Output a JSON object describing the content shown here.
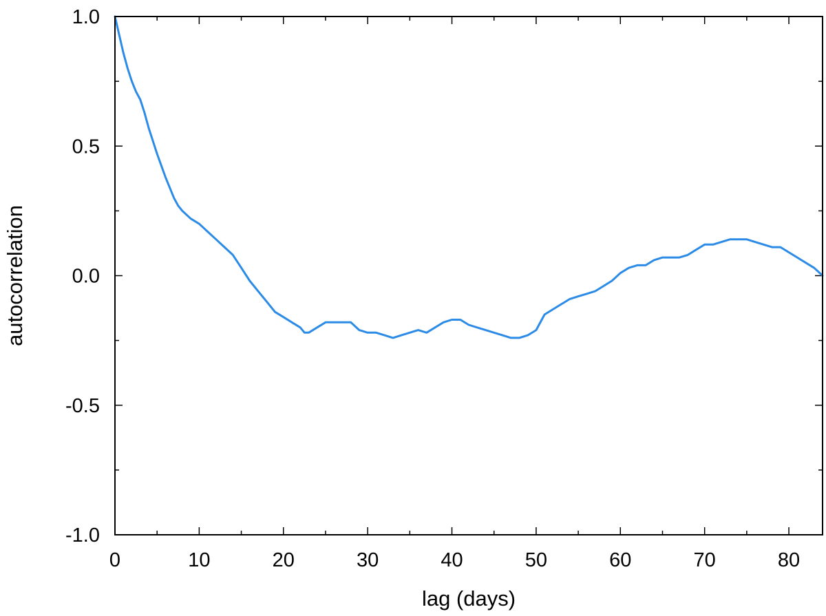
{
  "chart_data": {
    "type": "line",
    "title": "",
    "xlabel": "lag (days)",
    "ylabel": "autocorrelation",
    "xlim": [
      0,
      84
    ],
    "ylim": [
      -1.0,
      1.0
    ],
    "x_ticks": [
      0,
      10,
      20,
      30,
      40,
      50,
      60,
      70,
      80
    ],
    "x_tick_labels": [
      "0",
      "10",
      "20",
      "30",
      "40",
      "50",
      "60",
      "70",
      "80"
    ],
    "y_ticks": [
      -1.0,
      -0.5,
      0.0,
      0.5,
      1.0
    ],
    "y_tick_labels": [
      "-1.0",
      "-0.5",
      "0.0",
      "0.5",
      "1.0"
    ],
    "x_minor_step": 5,
    "y_minor_step": 0.25,
    "grid": false,
    "legend": "none",
    "line_color": "#2b8be6",
    "series": [
      {
        "x": [
          0,
          0.5,
          1,
          1.5,
          2,
          2.5,
          3,
          3.5,
          4,
          5,
          6,
          7,
          7.5,
          8,
          9,
          10,
          11,
          12,
          13,
          14,
          15,
          16,
          17,
          18,
          19,
          20,
          21,
          22,
          22.5,
          23,
          24,
          25,
          26,
          27,
          28,
          29,
          30,
          31,
          32,
          33,
          34,
          35,
          36,
          37,
          38,
          39,
          40,
          41,
          42,
          43,
          44,
          45,
          46,
          47,
          48,
          49,
          50,
          51,
          52,
          53,
          54,
          55,
          56,
          57,
          58,
          59,
          60,
          61,
          62,
          63,
          64,
          65,
          66,
          67,
          68,
          69,
          70,
          71,
          72,
          73,
          74,
          75,
          76,
          77,
          78,
          79,
          80,
          81,
          82,
          83,
          84
        ],
        "y": [
          1.0,
          0.93,
          0.86,
          0.8,
          0.75,
          0.71,
          0.68,
          0.63,
          0.57,
          0.47,
          0.38,
          0.3,
          0.27,
          0.25,
          0.22,
          0.2,
          0.17,
          0.14,
          0.11,
          0.08,
          0.03,
          -0.02,
          -0.06,
          -0.1,
          -0.14,
          -0.16,
          -0.18,
          -0.2,
          -0.22,
          -0.22,
          -0.2,
          -0.18,
          -0.18,
          -0.18,
          -0.18,
          -0.21,
          -0.22,
          -0.22,
          -0.23,
          -0.24,
          -0.23,
          -0.22,
          -0.21,
          -0.22,
          -0.2,
          -0.18,
          -0.17,
          -0.17,
          -0.19,
          -0.2,
          -0.21,
          -0.22,
          -0.23,
          -0.24,
          -0.24,
          -0.23,
          -0.21,
          -0.15,
          -0.13,
          -0.11,
          -0.09,
          -0.08,
          -0.07,
          -0.06,
          -0.04,
          -0.02,
          0.01,
          0.03,
          0.04,
          0.04,
          0.06,
          0.07,
          0.07,
          0.07,
          0.08,
          0.1,
          0.12,
          0.12,
          0.13,
          0.14,
          0.14,
          0.14,
          0.13,
          0.12,
          0.11,
          0.11,
          0.09,
          0.07,
          0.05,
          0.03,
          0.0
        ]
      }
    ]
  }
}
